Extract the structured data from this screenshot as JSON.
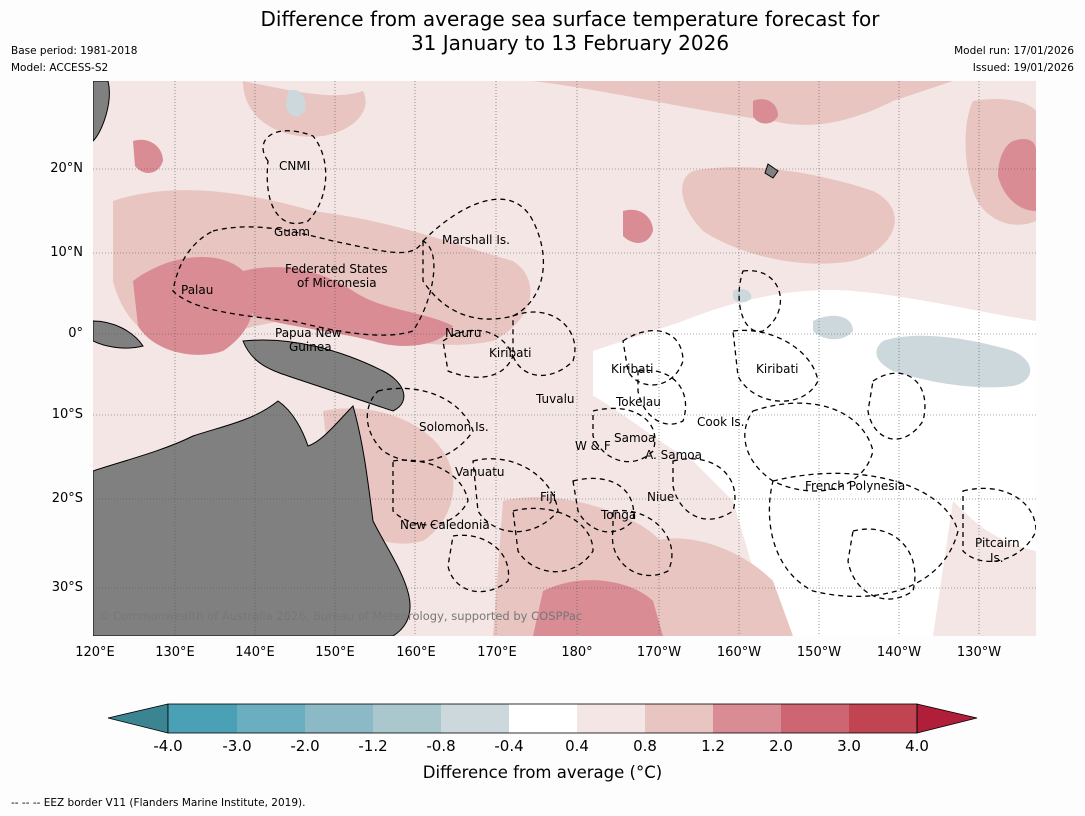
{
  "title_line1": "Difference from average sea surface temperature forecast for",
  "title_line2": "31 January to 13 February 2026",
  "meta_left": [
    "Base period: 1981-2018",
    "Model: ACCESS-S2"
  ],
  "meta_right": [
    "Model run: 17/01/2026",
    "Issued: 19/01/2026"
  ],
  "map": {
    "lat_labels": [
      "20°N",
      "10°N",
      "0°",
      "10°S",
      "20°S",
      "30°S"
    ],
    "lon_labels": [
      "120°E",
      "130°E",
      "140°E",
      "150°E",
      "160°E",
      "170°E",
      "180°",
      "170°W",
      "160°W",
      "150°W",
      "140°W",
      "130°W"
    ],
    "region_labels": [
      "CNMI",
      "Guam",
      "Marshall Is.",
      "Federated States",
      "of Micronesia",
      "Palau",
      "Papua New",
      "Guinea",
      "Nauru",
      "Kiribati",
      "Kiribati",
      "Kiribati",
      "Tuvalu",
      "Tokelau",
      "Cook Is.",
      "Solomon Is.",
      "Samoa",
      "W & F",
      "A. Samoa",
      "Vanuatu",
      "Fiji",
      "Niue",
      "Tonga",
      "French Polynesia",
      "New Caledonia",
      "Pitcairn",
      "Is."
    ],
    "copyright": "© Commonwealth of Australia 2026, Bureau of Meteorology, supported by COSPPac"
  },
  "colorbar": {
    "ticks": [
      "-4.0",
      "-3.0",
      "-2.0",
      "-1.2",
      "-0.8",
      "-0.4",
      "0.4",
      "0.8",
      "1.2",
      "2.0",
      "3.0",
      "4.0"
    ],
    "colors": [
      "#4aa0b5",
      "#6aaebf",
      "#8bb9c5",
      "#a9c7cc",
      "#ccd8dc",
      "#ffffff",
      "#f4e6e4",
      "#e8c5c1",
      "#d98c94",
      "#cd6572",
      "#c04452"
    ],
    "under_color": "#3a8591",
    "over_color": "#b01e3a",
    "label": "Difference from average (°C)"
  },
  "footer": "-- -- -- EEZ border V11 (Flanders Marine Institute, 2019)."
}
